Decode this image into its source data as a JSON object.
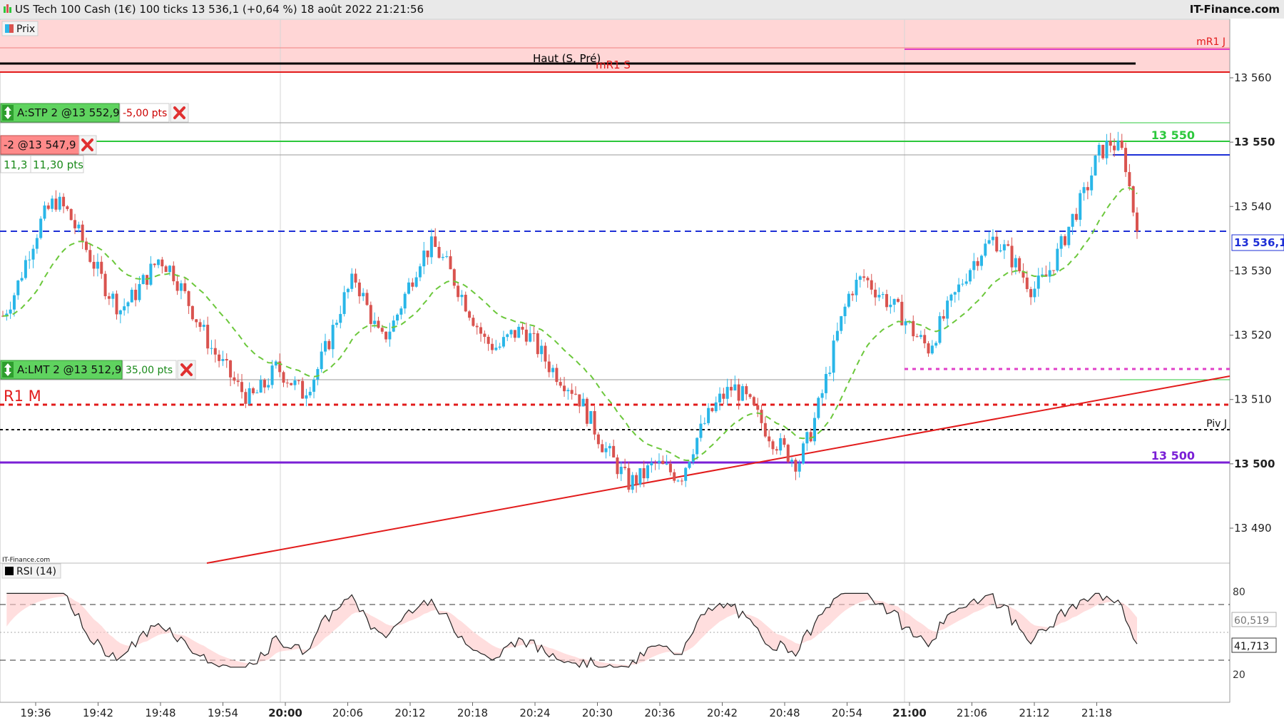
{
  "header": {
    "title": "US Tech 100 Cash (1€) 100 ticks 13 536,1 (+0,64 %) 18 août 2022 21:21:56",
    "brand": "IT-Finance.com"
  },
  "price_panel": {
    "legend_label": "Prix",
    "watermark": "IT-Finance.com",
    "last_price_label": "13 536,1",
    "y_ticks": [
      "13 490",
      "13 500",
      "13 510",
      "13 520",
      "13 530",
      "13 540",
      "13 550",
      "13 560"
    ]
  },
  "rsi_panel": {
    "legend_label": "RSI (14)",
    "y_ticks": [
      "20",
      "80"
    ],
    "value_main": "41,713",
    "value_signal": "60,519"
  },
  "x_ticks": [
    "19:36",
    "19:42",
    "19:48",
    "19:54",
    "20:00",
    "20:06",
    "20:12",
    "20:18",
    "20:24",
    "20:30",
    "20:36",
    "20:42",
    "20:48",
    "20:54",
    "21:00",
    "21:06",
    "21:12",
    "21:18"
  ],
  "levels": {
    "mr1j": "mR1 J",
    "haut": "Haut (S, Pré)",
    "mr1s": "mR1 S",
    "green_13550": "13 550",
    "r1m": "R1 M",
    "pivj": "Piv J",
    "purple_13500": "13 500"
  },
  "orders": {
    "stop": {
      "label": "A:STP 2 @13 552,9",
      "pts": "-5,00 pts"
    },
    "position": {
      "label": "-2 @13 547,9",
      "gain": "11,3",
      "pts": "11,30 pts"
    },
    "limit": {
      "label": "A:LMT 2 @13 512,9",
      "pts": "35,00 pts"
    }
  },
  "colors": {
    "up": "#29b6e8",
    "down": "#d9534f",
    "ema": "#6cc83c",
    "ema_down": "#e8502a",
    "blue_level": "#1e2fd6",
    "purple_level": "#7a1fd6",
    "green_level": "#2cc83c",
    "red_level": "#e21b1b",
    "magenta": "#e040c8",
    "resistance_zone": "#ffd6d6"
  },
  "chart_data": {
    "type": "candlestick",
    "title": "US Tech 100 Cash (1€) 100 ticks",
    "ylim": [
      13482,
      13569
    ],
    "series": [
      {
        "name": "Prix",
        "close_path": [
          13523,
          13527,
          13533,
          13538,
          13541,
          13539,
          13535,
          13531,
          13527,
          13524,
          13526,
          13529,
          13532,
          13530,
          13526,
          13522,
          13518,
          13515,
          13512,
          13510,
          13512,
          13515,
          13513,
          13511,
          13514,
          13519,
          13525,
          13529,
          13524,
          13519,
          13522,
          13527,
          13532,
          13534,
          13531,
          13527,
          13523,
          13519,
          13518,
          13520,
          13521,
          13518,
          13515,
          13513,
          13511,
          13507,
          13503,
          13500,
          13497,
          13498,
          13500,
          13499,
          13498,
          13503,
          13507,
          13510,
          13512,
          13510,
          13507,
          13504,
          13502,
          13500,
          13505,
          13512,
          13520,
          13527,
          13529,
          13527,
          13525,
          13523,
          13520,
          13518,
          13522,
          13526,
          13530,
          13533,
          13535,
          13533,
          13530,
          13527,
          13529,
          13533,
          13538,
          13542,
          13548,
          13550,
          13548,
          13536
        ]
      }
    ],
    "rsi": {
      "name": "RSI (14)",
      "ylim": [
        0,
        100
      ],
      "levels": [
        30,
        70
      ],
      "last_values": [
        41.713,
        60.519
      ]
    }
  }
}
